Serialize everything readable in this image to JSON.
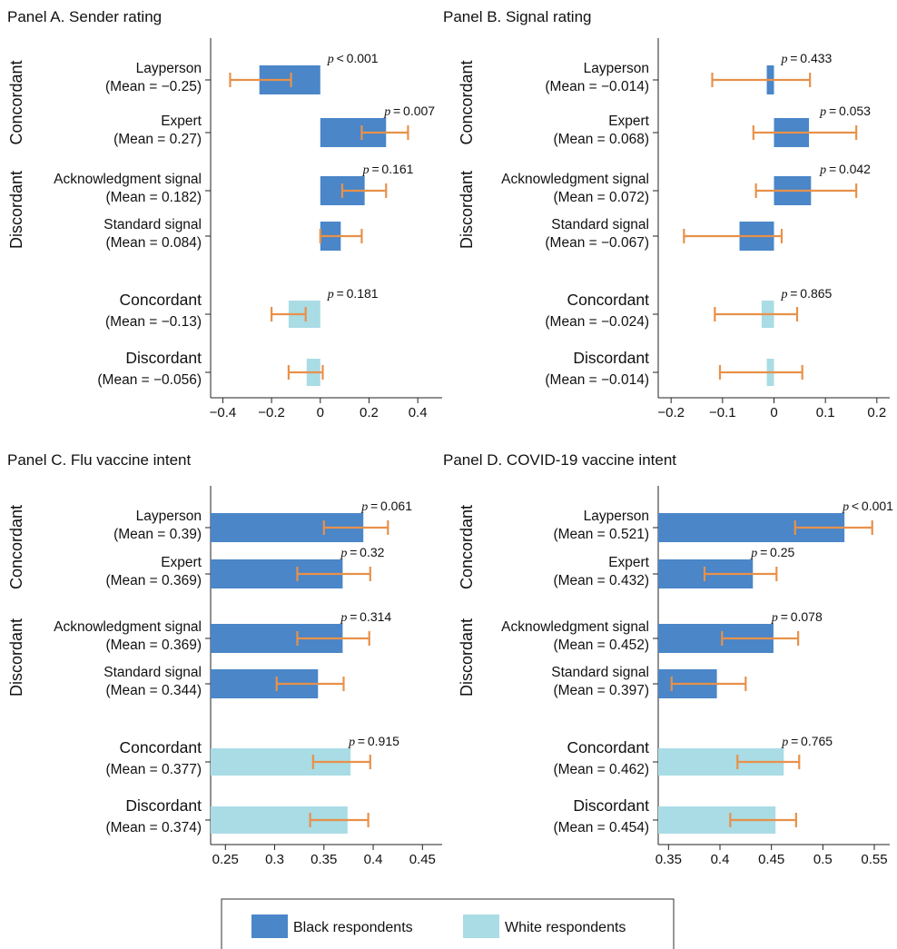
{
  "colors": {
    "black_respondents": "#4a86c8",
    "white_respondents": "#a9dce5",
    "error_bar": "#e8914a"
  },
  "legend": {
    "black_label": "Black respondents",
    "white_label": "White respondents"
  },
  "group_labels": {
    "top": "Concordant",
    "bottom": "Discordant"
  },
  "chart_data": [
    {
      "type": "bar",
      "title": "Panel A. Sender rating",
      "xlim": [
        -0.45,
        0.5
      ],
      "xticks": [
        -0.4,
        -0.2,
        0,
        0.2,
        0.4
      ],
      "xticklabels": [
        "−0.4",
        "−0.2",
        "0",
        "0.2",
        "0.4"
      ],
      "rows": [
        {
          "label": "Layperson",
          "mean": "(Mean = −0.25)",
          "value": -0.25,
          "ci": [
            -0.37,
            -0.12
          ],
          "series": "Black respondents",
          "p_op": "<",
          "p": "0.001"
        },
        {
          "label": "Expert",
          "mean": "(Mean = 0.27)",
          "value": 0.27,
          "ci": [
            0.17,
            0.36
          ],
          "series": "Black respondents",
          "p_op": "=",
          "p": "0.007"
        },
        {
          "label": "Acknowledgment signal",
          "mean": "(Mean = 0.182)",
          "value": 0.182,
          "ci": [
            0.09,
            0.27
          ],
          "series": "Black respondents",
          "p_op": "=",
          "p": "0.161"
        },
        {
          "label": "Standard signal",
          "mean": "(Mean = 0.084)",
          "value": 0.084,
          "ci": [
            0.0,
            0.17
          ],
          "series": "Black respondents",
          "p": ""
        },
        {
          "label": "Concordant",
          "mean": "(Mean = −0.13)",
          "value": -0.13,
          "ci": [
            -0.2,
            -0.06
          ],
          "series": "White respondents",
          "p_op": "=",
          "p": "0.181"
        },
        {
          "label": "Discordant",
          "mean": "(Mean = −0.056)",
          "value": -0.056,
          "ci": [
            -0.13,
            0.01
          ],
          "series": "White respondents",
          "p": ""
        }
      ]
    },
    {
      "type": "bar",
      "title": "Panel B. Signal rating",
      "xlim": [
        -0.225,
        0.225
      ],
      "xticks": [
        -0.2,
        -0.1,
        0,
        0.1,
        0.2
      ],
      "xticklabels": [
        "−0.2",
        "−0.1",
        "0",
        "0.1",
        "0.2"
      ],
      "rows": [
        {
          "label": "Layperson",
          "mean": "(Mean = −0.014)",
          "value": -0.014,
          "ci": [
            -0.12,
            0.07
          ],
          "series": "Black respondents",
          "p_op": "=",
          "p": "0.433"
        },
        {
          "label": "Expert",
          "mean": "(Mean = 0.068)",
          "value": 0.068,
          "ci": [
            -0.04,
            0.16
          ],
          "series": "Black respondents",
          "p_op": "=",
          "p": "0.053"
        },
        {
          "label": "Acknowledgment signal",
          "mean": "(Mean = 0.072)",
          "value": 0.072,
          "ci": [
            -0.035,
            0.16
          ],
          "series": "Black respondents",
          "p_op": "=",
          "p": "0.042"
        },
        {
          "label": "Standard signal",
          "mean": "(Mean = −0.067)",
          "value": -0.067,
          "ci": [
            -0.175,
            0.015
          ],
          "series": "Black respondents",
          "p": ""
        },
        {
          "label": "Concordant",
          "mean": "(Mean = −0.024)",
          "value": -0.024,
          "ci": [
            -0.115,
            0.045
          ],
          "series": "White respondents",
          "p_op": "=",
          "p": "0.865"
        },
        {
          "label": "Discordant",
          "mean": "(Mean = −0.014)",
          "value": -0.014,
          "ci": [
            -0.105,
            0.055
          ],
          "series": "White respondents",
          "p": ""
        }
      ]
    },
    {
      "type": "bar",
      "title": "Panel C. Flu vaccine intent",
      "xlim": [
        0.235,
        0.47
      ],
      "xticks": [
        0.25,
        0.3,
        0.35,
        0.4,
        0.45
      ],
      "xticklabels": [
        "0.25",
        "0.3",
        "0.35",
        "0.4",
        "0.45"
      ],
      "rows": [
        {
          "label": "Layperson",
          "mean": "(Mean = 0.39)",
          "value": 0.39,
          "ci": [
            0.35,
            0.415
          ],
          "series": "Black respondents",
          "p_op": "=",
          "p": "0.061"
        },
        {
          "label": "Expert",
          "mean": "(Mean = 0.369)",
          "value": 0.369,
          "ci": [
            0.323,
            0.397
          ],
          "series": "Black respondents",
          "p_op": "=",
          "p": "0.32"
        },
        {
          "label": "Acknowledgment signal",
          "mean": "(Mean = 0.369)",
          "value": 0.369,
          "ci": [
            0.323,
            0.396
          ],
          "series": "Black respondents",
          "p_op": "=",
          "p": "0.314"
        },
        {
          "label": "Standard signal",
          "mean": "(Mean = 0.344)",
          "value": 0.344,
          "ci": [
            0.302,
            0.37
          ],
          "series": "Black respondents",
          "p": ""
        },
        {
          "label": "Concordant",
          "mean": "(Mean = 0.377)",
          "value": 0.377,
          "ci": [
            0.339,
            0.397
          ],
          "series": "White respondents",
          "p_op": "=",
          "p": "0.915"
        },
        {
          "label": "Discordant",
          "mean": "(Mean = 0.374)",
          "value": 0.374,
          "ci": [
            0.336,
            0.395
          ],
          "series": "White respondents",
          "p": ""
        }
      ]
    },
    {
      "type": "bar",
      "title": "Panel D. COVID-19 vaccine intent",
      "xlim": [
        0.34,
        0.565
      ],
      "xticks": [
        0.35,
        0.4,
        0.45,
        0.5,
        0.55
      ],
      "xticklabels": [
        "0.35",
        "0.4",
        "0.45",
        "0.5",
        "0.55"
      ],
      "rows": [
        {
          "label": "Layperson",
          "mean": "(Mean = 0.521)",
          "value": 0.521,
          "ci": [
            0.473,
            0.548
          ],
          "series": "Black respondents",
          "p_op": "<",
          "p": "0.001"
        },
        {
          "label": "Expert",
          "mean": "(Mean = 0.432)",
          "value": 0.432,
          "ci": [
            0.385,
            0.455
          ],
          "series": "Black respondents",
          "p_op": "=",
          "p": "0.25"
        },
        {
          "label": "Acknowledgment signal",
          "mean": "(Mean = 0.452)",
          "value": 0.452,
          "ci": [
            0.402,
            0.476
          ],
          "series": "Black respondents",
          "p_op": "=",
          "p": "0.078"
        },
        {
          "label": "Standard signal",
          "mean": "(Mean = 0.397)",
          "value": 0.397,
          "ci": [
            0.353,
            0.425
          ],
          "series": "Black respondents",
          "p": ""
        },
        {
          "label": "Concordant",
          "mean": "(Mean = 0.462)",
          "value": 0.462,
          "ci": [
            0.417,
            0.477
          ],
          "series": "White respondents",
          "p_op": "=",
          "p": "0.765"
        },
        {
          "label": "Discordant",
          "mean": "(Mean = 0.454)",
          "value": 0.454,
          "ci": [
            0.41,
            0.474
          ],
          "series": "White respondents",
          "p": ""
        }
      ]
    }
  ]
}
